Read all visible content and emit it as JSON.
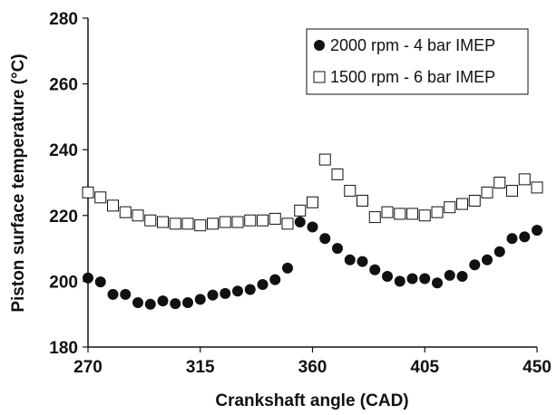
{
  "chart_data": {
    "type": "scatter",
    "title": "",
    "xlabel": "Crankshaft angle (CAD)",
    "ylabel": "Piston surface temperature (°C)",
    "xlim": [
      270,
      450
    ],
    "ylim": [
      180,
      280
    ],
    "xticks": [
      270,
      315,
      360,
      405,
      450
    ],
    "yticks": [
      180,
      200,
      220,
      240,
      260,
      280
    ],
    "grid": false,
    "legend_position": "top-right",
    "series": [
      {
        "name": "2000 rpm - 4 bar IMEP",
        "marker": "filled-circle",
        "color": "#111111",
        "x": [
          270,
          275,
          280,
          285,
          290,
          295,
          300,
          305,
          310,
          315,
          320,
          325,
          330,
          335,
          340,
          345,
          350,
          355,
          360,
          365,
          370,
          375,
          380,
          385,
          390,
          395,
          400,
          405,
          410,
          415,
          420,
          425,
          430,
          435,
          440,
          445,
          450
        ],
        "y": [
          201,
          199.8,
          196,
          196,
          193.5,
          193,
          194,
          193.2,
          193.5,
          194.5,
          195.8,
          196.3,
          197,
          197.5,
          199,
          200.5,
          204,
          218,
          216.5,
          213,
          210,
          206.5,
          206,
          203.5,
          201.5,
          200,
          200.8,
          200.8,
          199.5,
          201.8,
          201.5,
          205,
          206.5,
          209,
          213,
          213.5,
          215.5
        ]
      },
      {
        "name": "1500 rpm - 6 bar IMEP",
        "marker": "open-square",
        "color": "#111111",
        "x": [
          270,
          275,
          280,
          285,
          290,
          295,
          300,
          305,
          310,
          315,
          320,
          325,
          330,
          335,
          340,
          345,
          350,
          355,
          360,
          365,
          370,
          375,
          380,
          385,
          390,
          395,
          400,
          405,
          410,
          415,
          420,
          425,
          430,
          435,
          440,
          445,
          450
        ],
        "y": [
          227,
          225.5,
          223,
          221,
          220,
          218.5,
          218,
          217.5,
          217.5,
          217,
          217.5,
          218,
          218,
          218.5,
          218.5,
          219,
          217.5,
          221.5,
          224,
          237,
          232.5,
          227.5,
          224.5,
          219.5,
          221,
          220.5,
          220.5,
          220,
          221,
          222.5,
          223.5,
          224.5,
          227,
          230,
          227.5,
          231,
          228.5
        ]
      }
    ]
  }
}
